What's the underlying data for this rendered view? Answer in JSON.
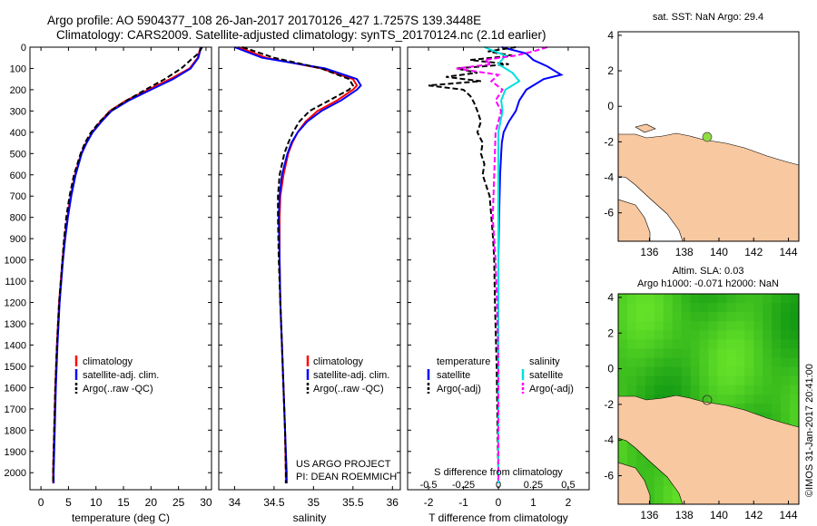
{
  "header": {
    "line1": "Argo profile: AO 5904377_108 26-Jan-2017 20170126_427 1.7257S 139.3448E",
    "line2": "Climatology: CARS2009. Satellite-adjusted climatology: synTS_20170124.nc (2.1d earlier)"
  },
  "colors": {
    "climatology": "#ff0000",
    "satellite": "#0000ff",
    "argo": "#000000",
    "sat_salinity": "#00e0e0",
    "argo_salinity": "#ff00ff",
    "land": "#f8c8a0",
    "float_marker": "#90dd40"
  },
  "chart_data": [
    {
      "type": "line",
      "id": "temperature",
      "xlabel": "temperature (deg C)",
      "ylabel": "",
      "xlim": [
        -2,
        31
      ],
      "ylim": [
        2080,
        0
      ],
      "xticks": [
        0,
        5,
        10,
        15,
        20,
        25,
        30
      ],
      "yticks": [
        0,
        100,
        200,
        300,
        400,
        500,
        600,
        700,
        800,
        900,
        1000,
        1100,
        1200,
        1300,
        1400,
        1500,
        1600,
        1700,
        1800,
        1900,
        2000
      ],
      "legend": [
        "climatology",
        "satellite-adj. clim.",
        "Argo(..raw -QC)"
      ],
      "legend_position": "bottom-center",
      "series": [
        {
          "name": "climatology",
          "depth": [
            0,
            50,
            100,
            150,
            200,
            250,
            300,
            350,
            400,
            450,
            500,
            600,
            700,
            800,
            900,
            1000,
            1200,
            1400,
            1600,
            1800,
            2000,
            2050
          ],
          "values": [
            29.0,
            28.5,
            27.0,
            23.5,
            19.5,
            15.5,
            12.5,
            10.8,
            9.3,
            8.2,
            7.3,
            6.2,
            5.4,
            4.8,
            4.3,
            3.9,
            3.3,
            2.9,
            2.6,
            2.4,
            2.2,
            2.2
          ]
        },
        {
          "name": "satellite-adj. clim.",
          "depth": [
            0,
            50,
            100,
            150,
            200,
            250,
            300,
            350,
            400,
            450,
            500,
            600,
            700,
            800,
            900,
            1000,
            1200,
            1400,
            1600,
            1800,
            2000,
            2050
          ],
          "values": [
            29.1,
            28.6,
            27.2,
            24.0,
            20.0,
            16.0,
            12.8,
            11.0,
            9.4,
            8.3,
            7.4,
            6.3,
            5.5,
            4.9,
            4.4,
            4.0,
            3.4,
            3.0,
            2.7,
            2.5,
            2.3,
            2.3
          ]
        },
        {
          "name": "Argo(..raw -QC)",
          "depth": [
            0,
            30,
            60,
            100,
            150,
            200,
            250,
            300,
            350,
            400,
            450,
            500,
            600,
            700,
            800,
            900,
            1000,
            1200,
            1400,
            1600,
            1800,
            2000,
            2050
          ],
          "values": [
            29.3,
            28.6,
            27.2,
            25.5,
            22.5,
            19.0,
            15.6,
            12.6,
            10.7,
            9.1,
            8.0,
            7.2,
            6.0,
            5.2,
            4.6,
            4.2,
            3.9,
            3.3,
            2.9,
            2.6,
            2.4,
            2.2,
            2.2
          ]
        }
      ]
    },
    {
      "type": "line",
      "id": "salinity",
      "xlabel": "salinity",
      "xlim": [
        33.8,
        36.1
      ],
      "ylim": [
        2080,
        0
      ],
      "xticks": [
        34,
        34.5,
        35,
        35.5,
        36
      ],
      "legend": [
        "climatology",
        "satellite-adj. clim.",
        "Argo(..raw -QC)"
      ],
      "legend_position": "bottom-center",
      "annotation": [
        "US ARGO PROJECT",
        "PI: DEAN ROEMMICH"
      ],
      "series": [
        {
          "name": "climatology",
          "depth": [
            0,
            50,
            100,
            150,
            180,
            200,
            250,
            300,
            350,
            400,
            450,
            500,
            600,
            700,
            800,
            1000,
            1200,
            1400,
            1600,
            1800,
            2000,
            2050
          ],
          "values": [
            34.05,
            34.4,
            35.1,
            35.5,
            35.55,
            35.5,
            35.3,
            35.05,
            34.9,
            34.8,
            34.73,
            34.68,
            34.62,
            34.58,
            34.57,
            34.57,
            34.58,
            34.6,
            34.62,
            34.64,
            34.65,
            34.65
          ]
        },
        {
          "name": "satellite-adj. clim.",
          "depth": [
            0,
            50,
            100,
            150,
            180,
            200,
            250,
            300,
            350,
            400,
            450,
            500,
            600,
            700,
            800,
            1000,
            1200,
            1400,
            1600,
            1800,
            2000,
            2050
          ],
          "values": [
            34.0,
            34.35,
            35.15,
            35.55,
            35.6,
            35.55,
            35.35,
            35.1,
            34.92,
            34.8,
            34.72,
            34.67,
            34.6,
            34.57,
            34.56,
            34.57,
            34.58,
            34.6,
            34.62,
            34.64,
            34.66,
            34.66
          ]
        },
        {
          "name": "Argo(..raw -QC)",
          "depth": [
            0,
            50,
            100,
            150,
            180,
            200,
            250,
            300,
            350,
            400,
            450,
            500,
            600,
            700,
            800,
            1000,
            1200,
            1400,
            1600,
            1800,
            2000,
            2050
          ],
          "values": [
            34.1,
            34.5,
            35.1,
            35.45,
            35.5,
            35.45,
            35.2,
            34.95,
            34.82,
            34.74,
            34.68,
            34.63,
            34.57,
            34.55,
            34.55,
            34.56,
            34.58,
            34.6,
            34.62,
            34.64,
            34.65,
            34.65
          ]
        }
      ]
    },
    {
      "type": "line",
      "id": "differences",
      "xlabel": "T difference from climatology",
      "top_xlabel": "S difference from climatology",
      "xlim": [
        -2.6,
        2.6
      ],
      "ylim": [
        2080,
        0
      ],
      "xticks": [
        -2,
        -1,
        0,
        1,
        2
      ],
      "top_xticks": [
        -0.5,
        -0.25,
        0,
        0.25,
        0.5
      ],
      "legend": [
        "temperature",
        "satellite",
        "Argo(-adj)",
        "salinity",
        "satellite",
        "Argo(-adj)"
      ],
      "legend_position": "bottom-center",
      "series": [
        {
          "name": "T satellite",
          "depth": [
            0,
            30,
            60,
            90,
            110,
            130,
            150,
            170,
            200,
            250,
            300,
            350,
            400,
            450,
            500,
            600,
            800,
            1000,
            1200,
            1500,
            2000,
            2050
          ],
          "values": [
            0.1,
            0.8,
            1.0,
            1.4,
            1.6,
            1.8,
            1.3,
            1.1,
            0.8,
            0.6,
            0.5,
            0.3,
            0.15,
            0.1,
            0.08,
            0.05,
            0.02,
            0.0,
            0.0,
            0.0,
            0.0,
            0.0
          ]
        },
        {
          "name": "T Argo(-adj)",
          "depth": [
            0,
            20,
            40,
            60,
            80,
            100,
            120,
            140,
            160,
            180,
            200,
            230,
            260,
            300,
            350,
            400,
            450,
            500,
            550,
            600,
            700,
            800,
            900,
            1000,
            1200,
            1500,
            1800,
            2000,
            2050
          ],
          "values": [
            0.5,
            -0.3,
            0.4,
            -0.8,
            0.3,
            -1.2,
            -0.6,
            -1.5,
            -0.5,
            -2.0,
            -1.0,
            -0.8,
            -0.7,
            -0.6,
            -0.5,
            -0.6,
            -0.45,
            -0.5,
            -0.4,
            -0.45,
            -0.25,
            -0.2,
            -0.15,
            -0.12,
            -0.1,
            -0.05,
            -0.02,
            0.0,
            0.0
          ]
        },
        {
          "name": "S satellite",
          "depth": [
            0,
            40,
            80,
            120,
            160,
            200,
            250,
            300,
            400,
            500,
            700,
            1000,
            1500,
            2050
          ],
          "values": [
            -0.1,
            0.05,
            0.0,
            0.1,
            0.15,
            0.05,
            0.02,
            0.03,
            0.0,
            0.0,
            0.0,
            0.0,
            0.0,
            0.0
          ]
        },
        {
          "name": "S Argo(-adj)",
          "depth": [
            0,
            20,
            40,
            60,
            80,
            100,
            130,
            160,
            200,
            250,
            300,
            400,
            600,
            800,
            1000,
            1200,
            1500,
            2000,
            2050
          ],
          "values": [
            0.35,
            0.25,
            0.12,
            -0.1,
            -0.05,
            -0.3,
            0.0,
            -0.05,
            0.03,
            -0.02,
            0.02,
            -0.02,
            -0.03,
            -0.04,
            -0.02,
            -0.01,
            0.0,
            0.0,
            0.0
          ]
        }
      ]
    },
    {
      "type": "scatter",
      "id": "sst_map",
      "title": "sat. SST: NaN Argo: 29.4",
      "xlim": [
        134.2,
        144.6
      ],
      "ylim": [
        -7.6,
        4.2
      ],
      "xticks": [
        136,
        138,
        140,
        142,
        144
      ],
      "yticks": [
        -6,
        -4,
        -2,
        0,
        2,
        4
      ],
      "x": [
        139.3448
      ],
      "y": [
        -1.7257
      ]
    },
    {
      "type": "heatmap",
      "id": "sla_map",
      "title": "Altim. SLA: 0.03",
      "subtitle": "Argo h1000: -0.071 h2000: NaN",
      "xlim": [
        134.2,
        144.6
      ],
      "ylim": [
        -7.6,
        4.2
      ],
      "xticks": [
        136,
        138,
        140,
        142,
        144
      ],
      "yticks": [
        -6,
        -4,
        -2,
        0,
        2,
        4
      ],
      "x": [
        139.3448
      ],
      "y": [
        -1.7257
      ]
    }
  ],
  "watermark": "©IMOS 31-Jan-2017 20:41:00"
}
